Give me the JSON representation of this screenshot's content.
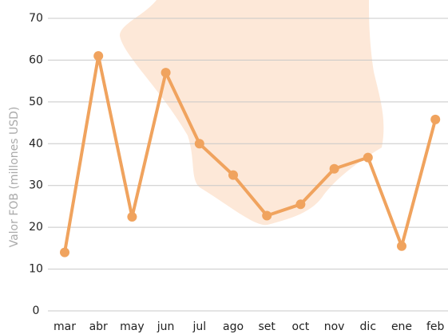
{
  "chart_data": {
    "type": "line",
    "y_label": "Valor FOB (millones USD)",
    "categories": [
      "mar",
      "abr",
      "may",
      "jun",
      "jul",
      "ago",
      "set",
      "oct",
      "nov",
      "dic",
      "ene",
      "feb"
    ],
    "values": [
      14,
      61,
      22.5,
      57,
      40,
      32.5,
      22.8,
      25.5,
      34,
      36.7,
      15.5,
      45.8
    ],
    "color": "#f0a35e",
    "ylim": [
      0,
      70
    ],
    "yticks": [
      0,
      10,
      20,
      30,
      40,
      50,
      60,
      70
    ],
    "grid": true
  }
}
